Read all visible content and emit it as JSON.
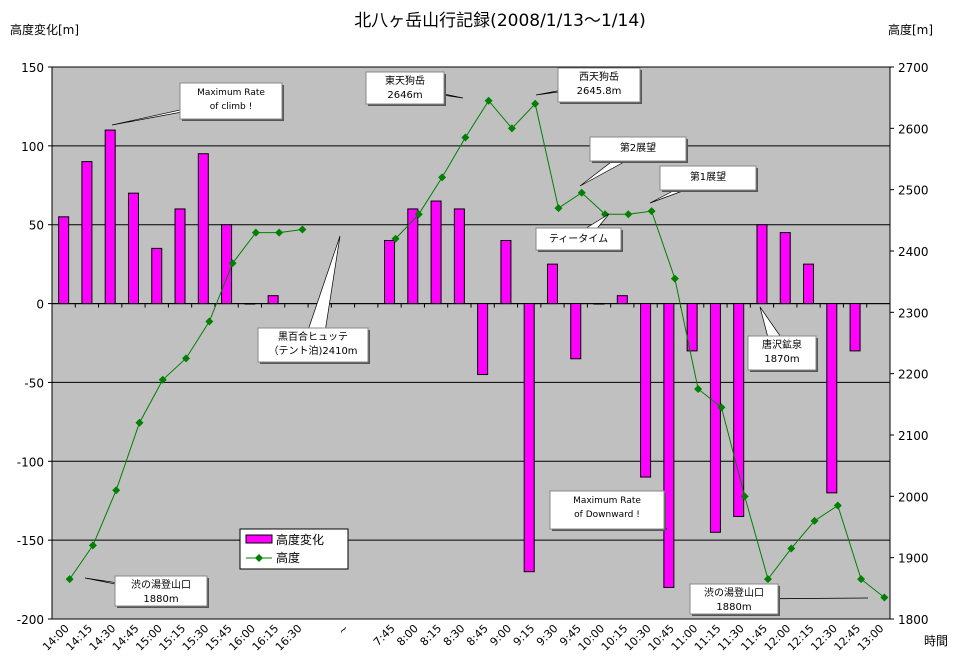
{
  "chart_data": {
    "type": "bar+line",
    "title": "北八ヶ岳山行記録(2008/1/13〜1/14)",
    "ylabel_left": "高度変化[m]",
    "ylabel_right": "高度[m]",
    "xlabel": "時間",
    "ylim_left": [
      -200,
      150
    ],
    "yticks_left": [
      150,
      100,
      50,
      0,
      -50,
      -100,
      -150,
      -200
    ],
    "ylim_right": [
      1800,
      2700
    ],
    "yticks_right": [
      2700,
      2600,
      2500,
      2400,
      2300,
      2200,
      2100,
      2000,
      1900,
      1800
    ],
    "grid": true,
    "legend_placement": "bottom-left",
    "categories": [
      "14:00",
      "14:15",
      "14:30",
      "14:45",
      "15:00",
      "15:15",
      "15:30",
      "15:45",
      "16:00",
      "16:15",
      "16:30",
      "",
      "~",
      "",
      "7:45",
      "8:00",
      "8:15",
      "8:30",
      "8:45",
      "9:00",
      "9:15",
      "9:30",
      "9:45",
      "10:00",
      "10:15",
      "10:30",
      "10:45",
      "11:00",
      "11:15",
      "11:30",
      "11:45",
      "12:00",
      "12:15",
      "12:30",
      "12:45",
      "13:00"
    ],
    "series": [
      {
        "name": "高度変化",
        "type": "bar",
        "axis": "left",
        "color": "#ff00ff",
        "values": [
          55,
          90,
          110,
          70,
          35,
          60,
          95,
          50,
          0,
          5,
          null,
          null,
          null,
          null,
          40,
          60,
          65,
          60,
          -45,
          40,
          -170,
          25,
          -35,
          0,
          5,
          -110,
          -180,
          -30,
          -145,
          -135,
          50,
          45,
          25,
          -120,
          -30,
          null
        ]
      },
      {
        "name": "高度",
        "type": "line",
        "axis": "right",
        "color": "#008000",
        "values": [
          1865,
          1920,
          2010,
          2120,
          2190,
          2225,
          2285,
          2380,
          2430,
          2430,
          2435,
          null,
          null,
          null,
          2420,
          2460,
          2520,
          2585,
          2645,
          2600,
          2640,
          2470,
          2495,
          2460,
          2460,
          2465,
          2355,
          2175,
          2145,
          2000,
          1865,
          1915,
          1960,
          1985,
          1865,
          1835
        ]
      }
    ],
    "annotations": [
      {
        "lines": [
          "Maximum Rate",
          "of climb !"
        ],
        "target": "14:30"
      },
      {
        "lines": [
          "東天狗岳",
          "2646m"
        ],
        "target": "8:45"
      },
      {
        "lines": [
          "西天狗岳",
          "2645.8m"
        ],
        "target": "9:15"
      },
      {
        "lines": [
          "第2展望"
        ],
        "target": "9:45"
      },
      {
        "lines": [
          "第1展望"
        ],
        "target": "10:30"
      },
      {
        "lines": [
          "ティータイム"
        ],
        "target": "10:00"
      },
      {
        "lines": [
          "黒百合ヒュッテ",
          "（テント泊)2410m"
        ],
        "target": "~"
      },
      {
        "lines": [
          "唐沢鉱泉",
          "1870m"
        ],
        "target": "11:45"
      },
      {
        "lines": [
          "Maximum Rate",
          "of Downward !"
        ],
        "target": "10:45"
      },
      {
        "lines": [
          "渋の湯登山口",
          "1880m"
        ],
        "target": "14:00"
      },
      {
        "lines": [
          "渋の湯登山口",
          "1880m"
        ],
        "target": "13:00"
      }
    ]
  }
}
